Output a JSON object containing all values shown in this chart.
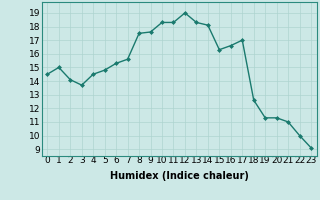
{
  "x": [
    0,
    1,
    2,
    3,
    4,
    5,
    6,
    7,
    8,
    9,
    10,
    11,
    12,
    13,
    14,
    15,
    16,
    17,
    18,
    19,
    20,
    21,
    22,
    23
  ],
  "y": [
    14.5,
    15.0,
    14.1,
    13.7,
    14.5,
    14.8,
    15.3,
    15.6,
    17.5,
    17.6,
    18.3,
    18.3,
    19.0,
    18.3,
    18.1,
    16.3,
    16.6,
    17.0,
    12.6,
    11.3,
    11.3,
    11.0,
    10.0,
    9.1
  ],
  "line_color": "#1a7a6e",
  "marker": "D",
  "markersize": 2.0,
  "linewidth": 1.0,
  "xlabel": "Humidex (Indice chaleur)",
  "ylabel_ticks": [
    9,
    10,
    11,
    12,
    13,
    14,
    15,
    16,
    17,
    18,
    19
  ],
  "ylim": [
    8.5,
    19.8
  ],
  "xlim": [
    -0.5,
    23.5
  ],
  "background_color": "#cce8e6",
  "plot_bg_color": "#cce8e6",
  "grid_color": "#aed4d0",
  "xlabel_fontsize": 7,
  "tick_fontsize": 6.5
}
